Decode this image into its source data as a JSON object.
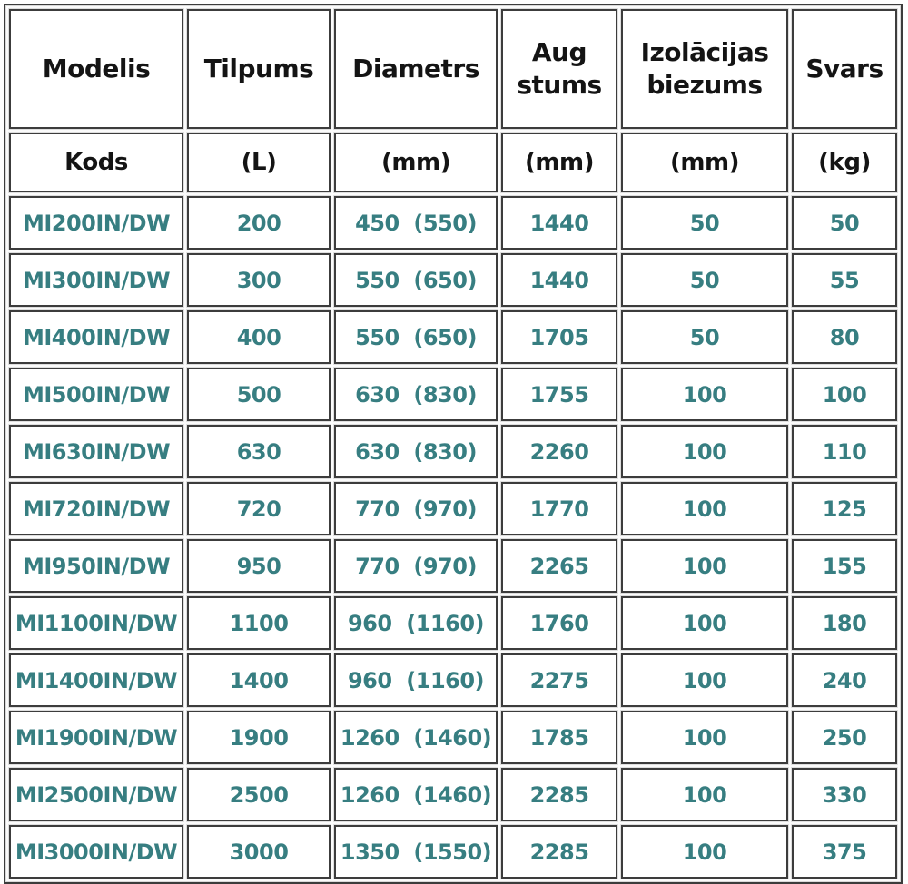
{
  "colors": {
    "header_text": "#141414",
    "data_text": "#377E81",
    "border": "#3C3C3C",
    "background": "#FFFFFF"
  },
  "chart_data": {
    "type": "table",
    "title": "",
    "header_row1": [
      "Modelis",
      "Tilpums",
      "Diametrs",
      "Aug stums",
      "Izolācijas biezums",
      "Svars"
    ],
    "header_row2": [
      "Kods",
      "(L)",
      "(mm)",
      "(mm)",
      "(mm)",
      "(kg)"
    ],
    "rows": [
      [
        "MI200IN/DW",
        "200",
        "450  (550)",
        "1440",
        "50",
        "50"
      ],
      [
        "MI300IN/DW",
        "300",
        "550  (650)",
        "1440",
        "50",
        "55"
      ],
      [
        "MI400IN/DW",
        "400",
        "550  (650)",
        "1705",
        "50",
        "80"
      ],
      [
        "MI500IN/DW",
        "500",
        "630  (830)",
        "1755",
        "100",
        "100"
      ],
      [
        "MI630IN/DW",
        "630",
        "630  (830)",
        "2260",
        "100",
        "110"
      ],
      [
        "MI720IN/DW",
        "720",
        "770  (970)",
        "1770",
        "100",
        "125"
      ],
      [
        "MI950IN/DW",
        "950",
        "770  (970)",
        "2265",
        "100",
        "155"
      ],
      [
        "MI1100IN/DW",
        "1100",
        "960  (1160)",
        "1760",
        "100",
        "180"
      ],
      [
        "MI1400IN/DW",
        "1400",
        "960  (1160)",
        "2275",
        "100",
        "240"
      ],
      [
        "MI1900IN/DW",
        "1900",
        "1260  (1460)",
        "1785",
        "100",
        "250"
      ],
      [
        "MI2500IN/DW",
        "2500",
        "1260  (1460)",
        "2285",
        "100",
        "330"
      ],
      [
        "MI3000IN/DW",
        "3000",
        "1350  (1550)",
        "2285",
        "100",
        "375"
      ]
    ]
  }
}
